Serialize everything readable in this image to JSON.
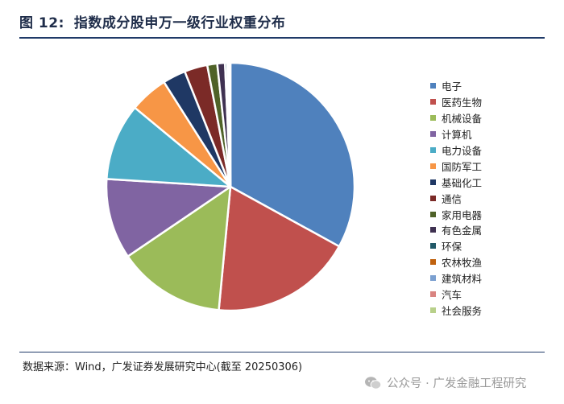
{
  "header": {
    "figure_label": "图 12:",
    "title": "指数成分股申万一级行业权重分布"
  },
  "chart_data": {
    "type": "pie",
    "title": "",
    "start_angle": "12 o'clock",
    "direction": "clockwise",
    "legend_position": "right",
    "categories": [
      "电子",
      "医药生物",
      "机械设备",
      "计算机",
      "电力设备",
      "国防军工",
      "基础化工",
      "通信",
      "家用电器",
      "有色金属",
      "环保",
      "农林牧渔",
      "建筑材料",
      "汽车",
      "社会服务"
    ],
    "values": [
      33.0,
      18.5,
      14.0,
      10.5,
      10.0,
      5.0,
      3.0,
      3.0,
      1.3,
      1.0,
      0.3,
      0.1,
      0.1,
      0.1,
      0.1
    ],
    "colors": [
      "#4f81bd",
      "#c0504d",
      "#9bbb59",
      "#8064a2",
      "#4bacc6",
      "#f79646",
      "#1f3864",
      "#7b2a27",
      "#4f6228",
      "#3f3151",
      "#215968",
      "#c0620f",
      "#7ba0d0",
      "#d98481",
      "#b8d08a"
    ]
  },
  "footer": {
    "source": "数据来源：Wind，广发证券发展研究中心(截至 20250306)",
    "watermark": "公众号 · 广发金融工程研究",
    "watermark_icon": "wechat-icon"
  }
}
